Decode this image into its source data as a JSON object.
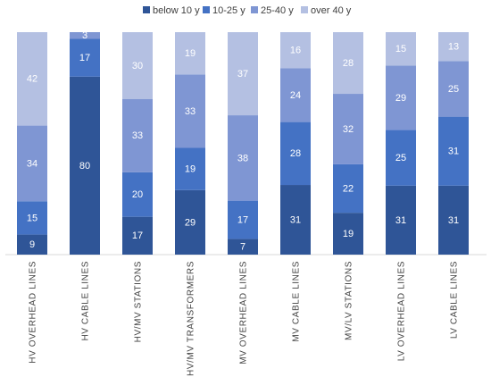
{
  "chart_data": {
    "type": "bar",
    "stacked": true,
    "normalized": true,
    "categories": [
      "HV OVERHEAD LINES",
      "HV CABLE LINES",
      "HV/MV STATIONS",
      "HV/MV TRANSFORMERS",
      "MV OVERHEAD LINES",
      "MV CABLE LINES",
      "MV/LV STATIONS",
      "LV OVERHEAD LINES",
      "LV CABLE LINES"
    ],
    "series": [
      {
        "name": "below 10 y",
        "color": "#2f5597",
        "label_color": "#ffffff",
        "values": [
          9,
          80,
          17,
          29,
          7,
          31,
          19,
          31,
          31
        ]
      },
      {
        "name": "10-25 y",
        "color": "#4472c4",
        "label_color": "#ffffff",
        "values": [
          15,
          17,
          20,
          19,
          17,
          28,
          22,
          25,
          31
        ]
      },
      {
        "name": "25-40 y",
        "color": "#7f96d3",
        "label_color": "#ffffff",
        "values": [
          34,
          3,
          33,
          33,
          38,
          24,
          32,
          29,
          25
        ]
      },
      {
        "name": "over 40 y",
        "color": "#b4c0e2",
        "label_color": "#ffffff",
        "values": [
          42,
          null,
          30,
          19,
          37,
          16,
          28,
          15,
          13
        ]
      }
    ],
    "legend_position": "top",
    "grid": false,
    "xlabel": "",
    "ylabel": ""
  }
}
